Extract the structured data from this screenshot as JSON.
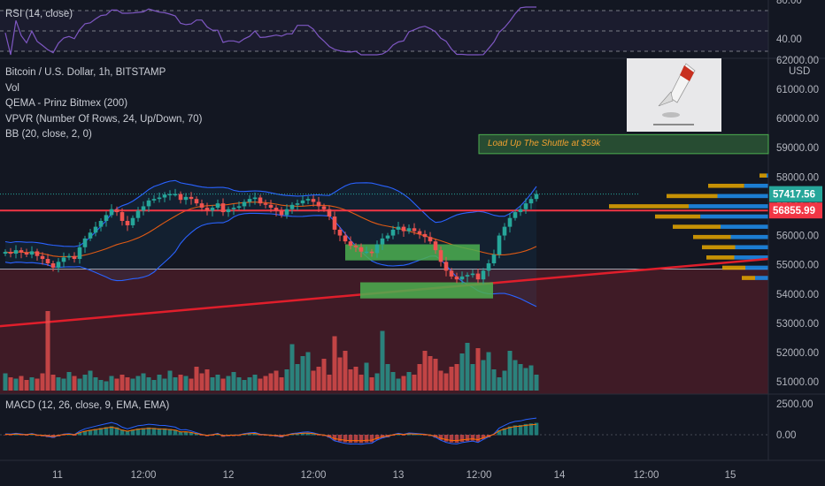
{
  "header": {
    "rsi_label": "RSI (14, close)",
    "symbol_label": "Bitcoin / U.S. Dollar, 1h, BITSTAMP",
    "indicators": [
      "Vol",
      "QEMA - Prinz Bitmex (200)",
      "VPVR (Number Of Rows, 24, Up/Down, 70)",
      "BB (20, close, 2, 0)"
    ],
    "macd_label": "MACD (12, 26, close, 9, EMA, EMA)"
  },
  "annotation": {
    "text": "Load Up The Shuttle at $59k"
  },
  "colors": {
    "up": "#26a69a",
    "down": "#ef5350",
    "bb": "#2962ff",
    "red_line": "#f23645",
    "ema": "#e05a14",
    "green_box": "#4caf50",
    "accent": "#e6a700"
  },
  "chart_data": {
    "type": "candlestick",
    "symbol": "Bitcoin / U.S. Dollar",
    "interval": "1h",
    "exchange": "BITSTAMP",
    "currency": "USD",
    "x_ticks": [
      "11",
      "12:00",
      "12",
      "12:00",
      "13",
      "12:00",
      "14",
      "12:00",
      "15"
    ],
    "price_axis": {
      "ticks": [
        51000,
        52000,
        53000,
        54000,
        55000,
        56000,
        57000,
        58000,
        59000,
        60000,
        61000,
        62000
      ],
      "ylim": [
        50700,
        62300
      ]
    },
    "price_tags": [
      {
        "value": "57417.56",
        "color": "#26a69a"
      },
      {
        "value": "56855.99",
        "color": "#f23645"
      }
    ],
    "rsi": {
      "ticks": [
        "80.00",
        "40.00"
      ],
      "levels": [
        70,
        30
      ]
    },
    "macd": {
      "ticks": [
        "2500.00",
        "0.00"
      ]
    },
    "closes": [
      55440,
      55380,
      55500,
      55420,
      55350,
      55460,
      55300,
      55200,
      55050,
      54900,
      55100,
      55250,
      55300,
      55200,
      55600,
      55900,
      56100,
      56300,
      56500,
      56700,
      56900,
      56800,
      56500,
      56350,
      56600,
      56850,
      57000,
      57200,
      57250,
      57300,
      57400,
      57420,
      57420,
      57220,
      57320,
      57250,
      57100,
      56950,
      56850,
      56950,
      57100,
      56800,
      56900,
      56950,
      57000,
      57150,
      57250,
      57300,
      57100,
      57050,
      56950,
      56850,
      56700,
      56900,
      57050,
      57100,
      57200,
      57250,
      57150,
      57000,
      56900,
      56650,
      56200,
      56000,
      55800,
      55650,
      55600,
      55450,
      55450,
      55400,
      55700,
      55900,
      56000,
      56200,
      56300,
      56150,
      56250,
      56150,
      56050,
      55950,
      55800,
      55500,
      55100,
      54800,
      54600,
      54500,
      54600,
      54650,
      54700,
      54500,
      54800,
      55050,
      55350,
      56000,
      56300,
      56600,
      56800,
      56900,
      57100,
      57250,
      57417.56
    ],
    "volumes": [
      1.3,
      1.0,
      0.9,
      1.1,
      0.8,
      1.0,
      0.9,
      1.3,
      6.0,
      1.2,
      1.0,
      0.9,
      1.4,
      1.1,
      0.9,
      1.2,
      1.5,
      1.0,
      0.8,
      0.7,
      1.1,
      0.9,
      1.2,
      1.0,
      0.9,
      1.1,
      1.3,
      1.0,
      0.8,
      1.2,
      0.9,
      1.5,
      1.0,
      1.2,
      1.1,
      0.9,
      1.8,
      1.3,
      1.6,
      1.0,
      1.2,
      0.9,
      1.1,
      1.4,
      1.0,
      0.8,
      1.0,
      1.2,
      0.9,
      1.1,
      1.3,
      1.5,
      1.0,
      1.6,
      3.5,
      2.0,
      2.6,
      2.9,
      1.5,
      1.8,
      2.4,
      1.2,
      4.1,
      2.5,
      3.0,
      1.6,
      1.8,
      1.2,
      2.1,
      1.0,
      1.3,
      4.5,
      2.0,
      1.4,
      0.9,
      1.1,
      1.4,
      1.2,
      2.0,
      3.0,
      2.6,
      2.4,
      1.5,
      1.3,
      1.8,
      2.0,
      2.8,
      3.6,
      2.0,
      3.2,
      2.3,
      2.9,
      1.6,
      1.0,
      1.5,
      3.0,
      2.3,
      2.0,
      1.7,
      1.9,
      1.2
    ]
  }
}
